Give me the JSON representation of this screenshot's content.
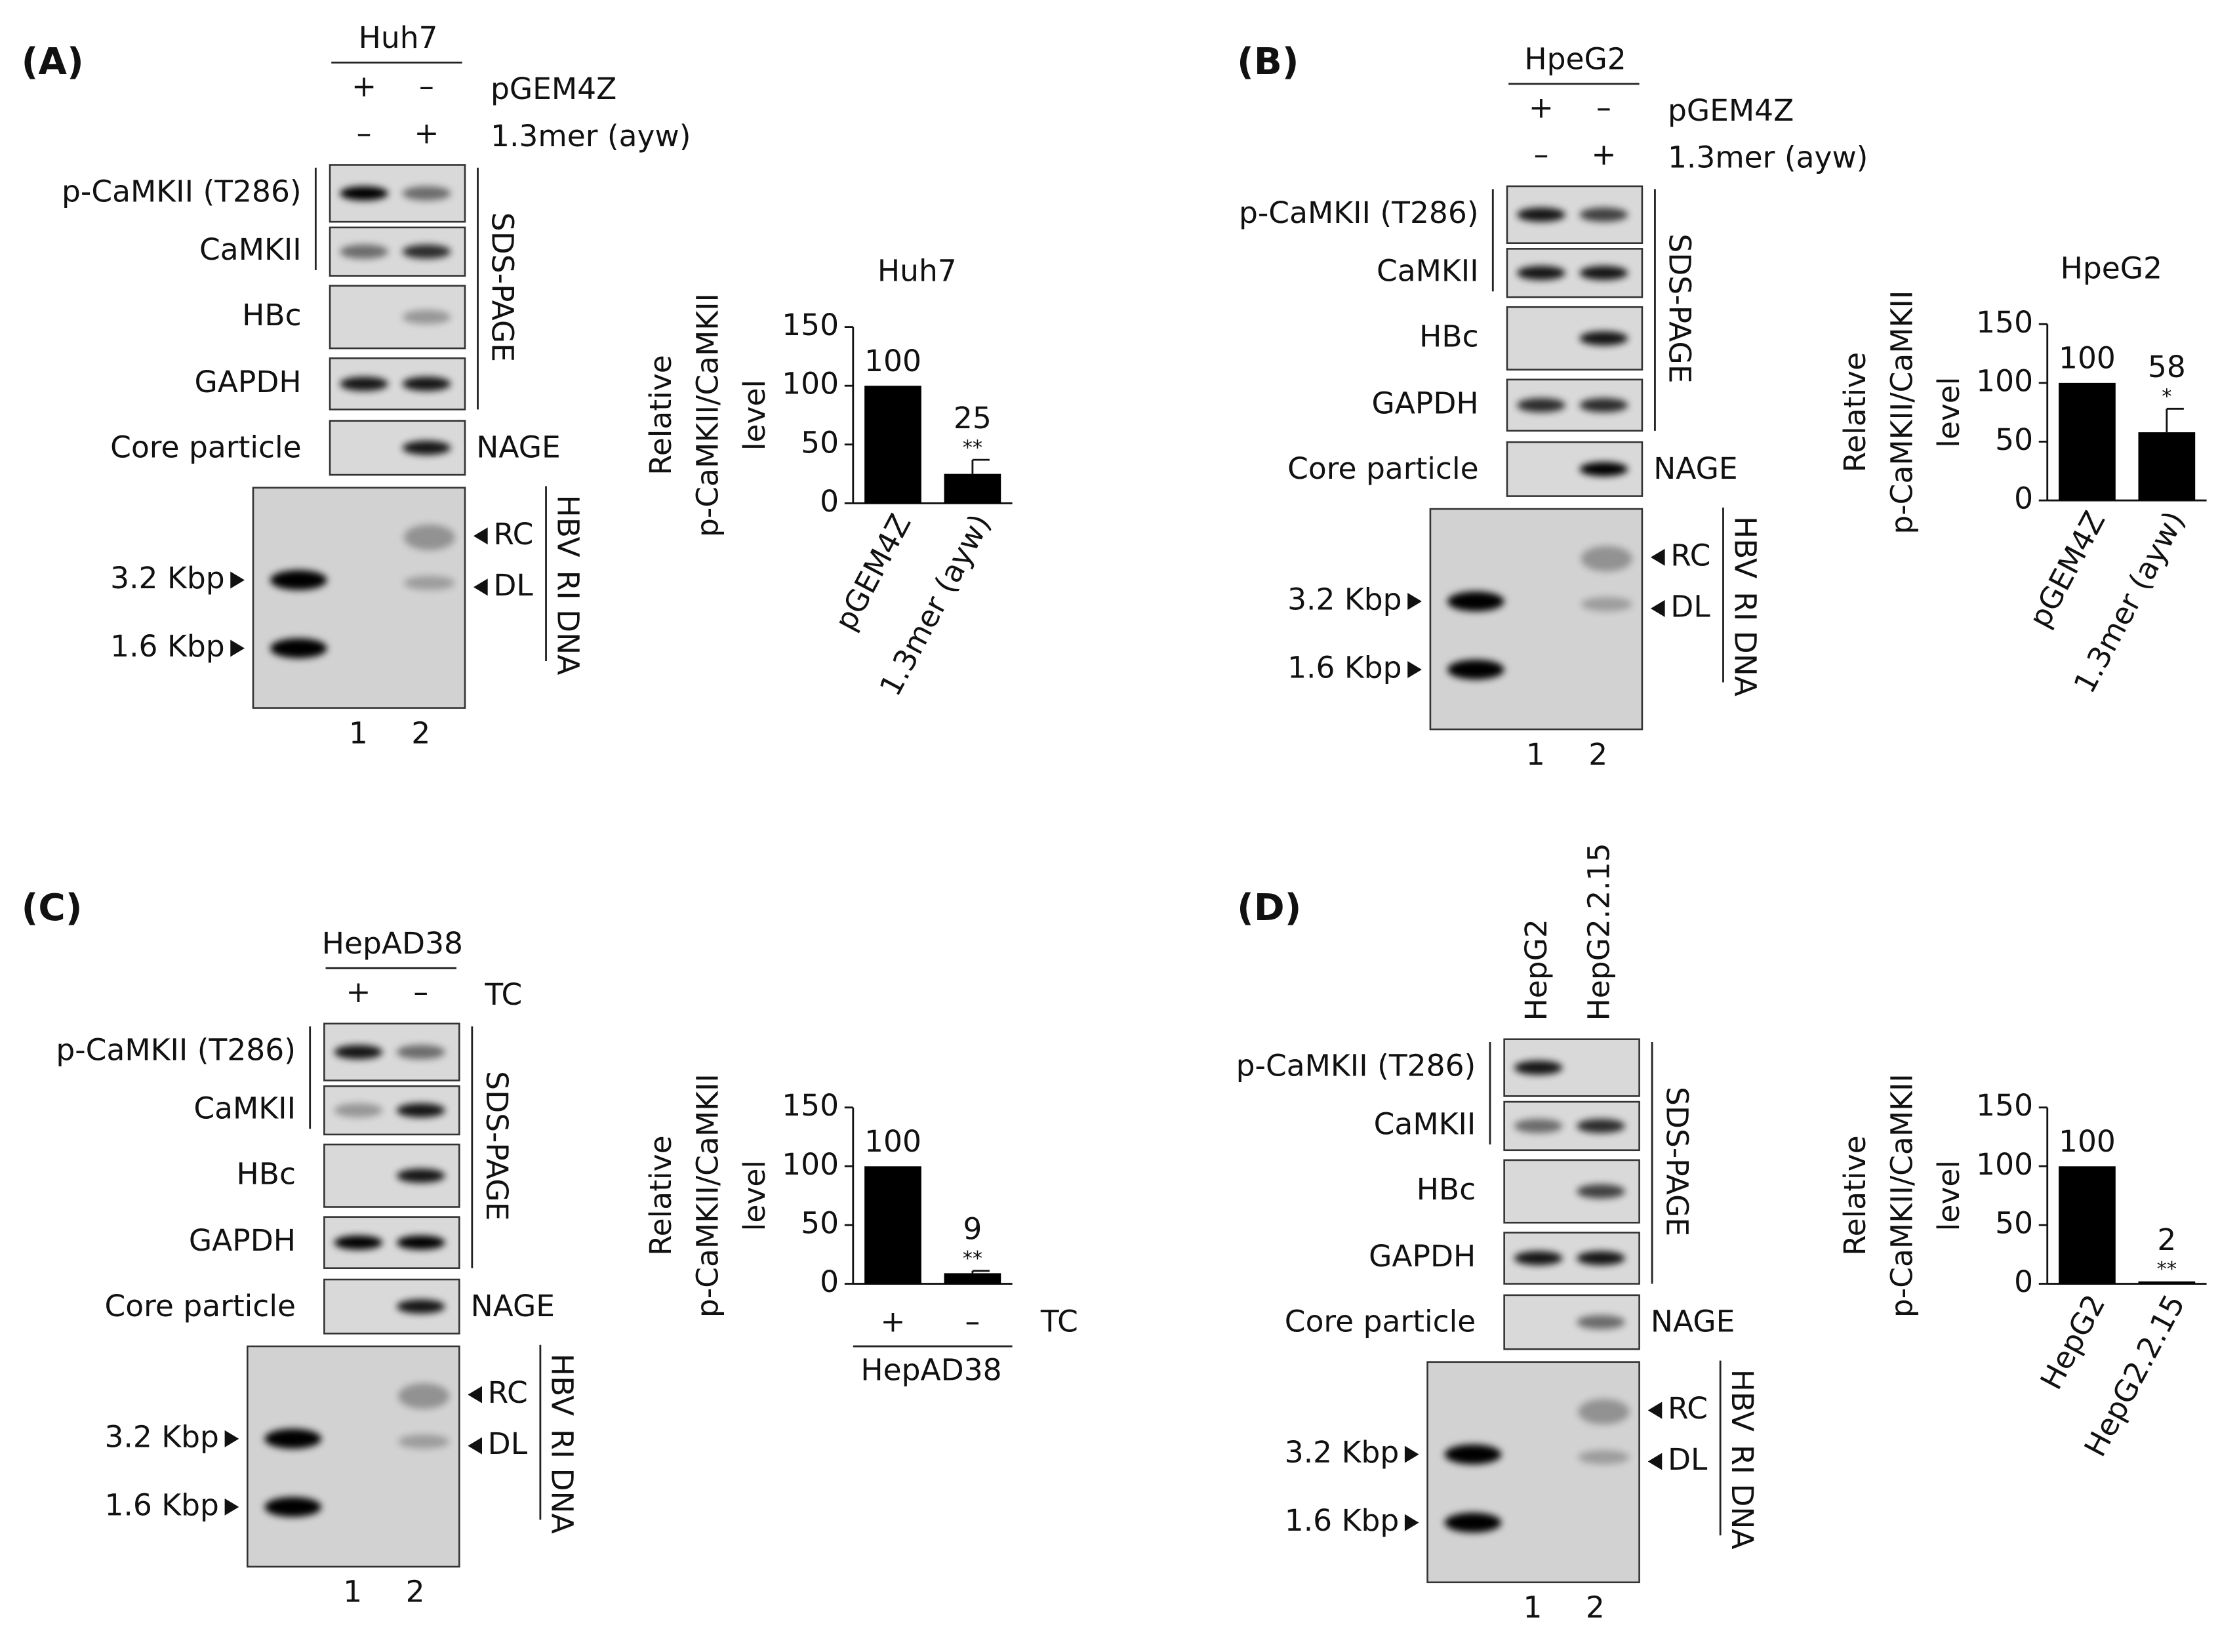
{
  "panels": [
    {
      "label": "(A)",
      "cell_line": "Huh7",
      "conditions": [
        {
          "name": "pGEM4Z",
          "signs": [
            "+",
            "–"
          ]
        },
        {
          "name": "1.3mer (ayw)",
          "signs": [
            "–",
            "+"
          ]
        }
      ],
      "blots": [
        "p-CaMKII (T286)",
        "CaMKII",
        "HBc",
        "GAPDH"
      ],
      "blot_method": "SDS-PAGE",
      "core": "Core particle",
      "core_method": "NAGE",
      "markers": [
        "3.2 Kbp",
        "1.6 Kbp"
      ],
      "dna_bands": [
        "RC",
        "DL"
      ],
      "dna_label": [
        "HBV",
        "RI DNA"
      ],
      "lanes": [
        "1",
        "2"
      ],
      "chart": {
        "type": "bar",
        "title": "Huh7",
        "y_label": [
          "Relative",
          "p-CaMKII/CaMKII",
          "level"
        ],
        "categories": [
          "pGEM4Z",
          "1.3mer (ayw)"
        ],
        "values": [
          100,
          25
        ],
        "errors": [
          null,
          12
        ],
        "significance": [
          null,
          "**"
        ],
        "color": "#000000",
        "ylim": [
          0,
          150
        ],
        "yticks": [
          0,
          50,
          100,
          150
        ]
      }
    },
    {
      "label": "(B)",
      "cell_line": "HpeG2",
      "conditions": [
        {
          "name": "pGEM4Z",
          "signs": [
            "+",
            "–"
          ]
        },
        {
          "name": "1.3mer (ayw)",
          "signs": [
            "–",
            "+"
          ]
        }
      ],
      "blots": [
        "p-CaMKII (T286)",
        "CaMKII",
        "HBc",
        "GAPDH"
      ],
      "blot_method": "SDS-PAGE",
      "core": "Core particle",
      "core_method": "NAGE",
      "markers": [
        "3.2 Kbp",
        "1.6 Kbp"
      ],
      "dna_bands": [
        "RC",
        "DL"
      ],
      "dna_label": [
        "HBV",
        "RI DNA"
      ],
      "lanes": [
        "1",
        "2"
      ],
      "chart": {
        "type": "bar",
        "title": "HpeG2",
        "y_label": [
          "Relative",
          "p-CaMKII/CaMKII",
          "level"
        ],
        "categories": [
          "pGEM4Z",
          "1.3mer (ayw)"
        ],
        "values": [
          100,
          58
        ],
        "errors": [
          null,
          20
        ],
        "significance": [
          null,
          "*"
        ],
        "color": "#000000",
        "ylim": [
          0,
          150
        ],
        "yticks": [
          0,
          50,
          100,
          150
        ]
      }
    },
    {
      "label": "(C)",
      "cell_line": "HepAD38",
      "conditions": [
        {
          "name": "TC",
          "signs": [
            "+",
            "–"
          ]
        }
      ],
      "blots": [
        "p-CaMKII (T286)",
        "CaMKII",
        "HBc",
        "GAPDH"
      ],
      "blot_method": "SDS-PAGE",
      "core": "Core particle",
      "core_method": "NAGE",
      "markers": [
        "3.2 Kbp",
        "1.6 Kbp"
      ],
      "dna_bands": [
        "RC",
        "DL"
      ],
      "dna_label": [
        "HBV",
        "RI DNA"
      ],
      "lanes": [
        "1",
        "2"
      ],
      "chart": {
        "type": "bar",
        "y_label": [
          "Relative",
          "p-CaMKII/CaMKII",
          "level"
        ],
        "categories": [
          "+",
          "–"
        ],
        "category_axis_label": "TC",
        "category_group": "HepAD38",
        "values": [
          100,
          9
        ],
        "errors": [
          null,
          2
        ],
        "significance": [
          null,
          "**"
        ],
        "color": "#000000",
        "ylim": [
          0,
          150
        ],
        "yticks": [
          0,
          50,
          100,
          150
        ]
      }
    },
    {
      "label": "(D)",
      "lane_names": [
        "HepG2",
        "HepG2.2.15"
      ],
      "blots": [
        "p-CaMKII (T286)",
        "CaMKII",
        "HBc",
        "GAPDH"
      ],
      "blot_method": "SDS-PAGE",
      "core": "Core particle",
      "core_method": "NAGE",
      "markers": [
        "3.2 Kbp",
        "1.6 Kbp"
      ],
      "dna_bands": [
        "RC",
        "DL"
      ],
      "dna_label": [
        "HBV",
        "RI DNA"
      ],
      "lanes": [
        "1",
        "2"
      ],
      "chart": {
        "type": "bar",
        "y_label": [
          "Relative",
          "p-CaMKII/CaMKII",
          "level"
        ],
        "categories": [
          "HepG2",
          "HepG2.2.15"
        ],
        "values": [
          100,
          2
        ],
        "errors": [
          null,
          null
        ],
        "significance": [
          null,
          "**"
        ],
        "color": "#000000",
        "ylim": [
          0,
          150
        ],
        "yticks": [
          0,
          50,
          100,
          150
        ]
      }
    }
  ]
}
